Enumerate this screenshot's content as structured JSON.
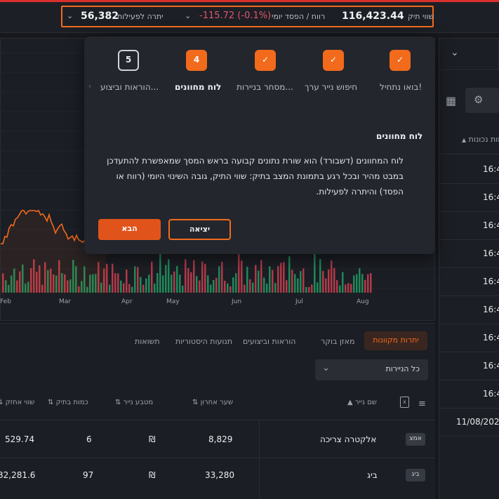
{
  "dashboard": {
    "portfolio_label": "שווי תיק",
    "portfolio_value": "116,423.44",
    "daily_pl_label": "רווח / הפסד יומי",
    "daily_pl_value": "-115.72 (-0.1%)",
    "balance_label": "יתרה לפעילות",
    "balance_value": "56,382"
  },
  "chart": {
    "x_labels": [
      "Feb",
      "Mar",
      "Apr",
      "May",
      "Jun",
      "Jul",
      "Aug"
    ]
  },
  "tour": {
    "steps": [
      {
        "label": "בואו נתחיל!",
        "state": "done",
        "mark": "✓"
      },
      {
        "label": "חיפוש נייר ערך",
        "state": "done",
        "mark": "✓"
      },
      {
        "label": "מסחר בניירות...",
        "state": "done",
        "mark": "✓"
      },
      {
        "label": "לוח מחוונים",
        "state": "current",
        "mark": "4"
      },
      {
        "label": "הוראות וביצוע...",
        "state": "todo",
        "mark": "5"
      }
    ],
    "title": "לוח מחוונים",
    "body": "לוח המחוונים (דשבורד) הוא שורת נתונים קבועה בראש המסך שמאפשרת להתעדכן במבט מהיר ובכל רגע בתמונת המצב בתיק: שווי התיק, גובה השינוי היומי (רווח או הפסד) והיתרה לפעילות.",
    "next_label": "הבא",
    "exit_label": "יציאה"
  },
  "right_panel": {
    "header": "כמות נכונות",
    "times": [
      "16:4",
      "16:4",
      "16:4",
      "16:4",
      "16:4",
      "16:4",
      "16:4",
      "16:4",
      "16:4"
    ],
    "date": "11/08/202"
  },
  "bottom": {
    "tabs": [
      "יתרות מקוונות",
      "מאזן בוקר",
      "הוראות וביצועים",
      "תנועות היסטוריות",
      "תשואות"
    ],
    "filter": "כל הניירות",
    "columns": [
      "שם נייר",
      "שער אחרון",
      "מטבע נייר",
      "כמות בתיק",
      "שווי אחזק"
    ],
    "rows": [
      {
        "tag": "אמצ",
        "name": "אלקטרה צריכה",
        "last": "8,829",
        "currency": "₪",
        "qty": "6",
        "value": "529.74"
      },
      {
        "tag": "ביג",
        "name": "ביג",
        "last": "33,280",
        "currency": "₪",
        "qty": "97",
        "value": "32,281.6"
      }
    ]
  },
  "colors": {
    "accent": "#f26a1b",
    "negative": "#e0566b",
    "bar_green": "#1f8a5a",
    "bar_red": "#b33a4a"
  }
}
